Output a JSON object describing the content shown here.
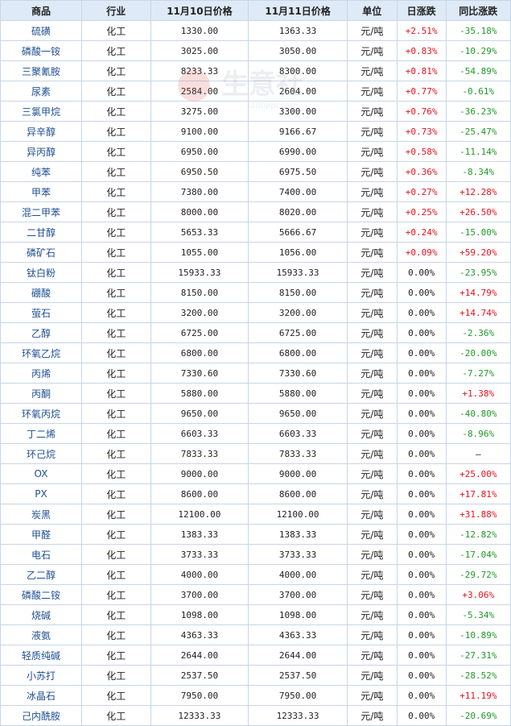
{
  "headers": [
    "商品",
    "行业",
    "11月10日价格",
    "11月11日价格",
    "单位",
    "日涨跌",
    "同比涨跌"
  ],
  "watermark": {
    "text": "生意社",
    "sub": "100ppi.com"
  },
  "rows": [
    {
      "name": "硫磺",
      "industry": "化工",
      "p1": "1330.00",
      "p2": "1363.33",
      "unit": "元/吨",
      "day": "+2.51%",
      "yoy": "-35.18%"
    },
    {
      "name": "磷酸一铵",
      "industry": "化工",
      "p1": "3025.00",
      "p2": "3050.00",
      "unit": "元/吨",
      "day": "+0.83%",
      "yoy": "-10.29%"
    },
    {
      "name": "三聚氰胺",
      "industry": "化工",
      "p1": "8233.33",
      "p2": "8300.00",
      "unit": "元/吨",
      "day": "+0.81%",
      "yoy": "-54.89%"
    },
    {
      "name": "尿素",
      "industry": "化工",
      "p1": "2584.00",
      "p2": "2604.00",
      "unit": "元/吨",
      "day": "+0.77%",
      "yoy": "-0.61%"
    },
    {
      "name": "三氯甲烷",
      "industry": "化工",
      "p1": "3275.00",
      "p2": "3300.00",
      "unit": "元/吨",
      "day": "+0.76%",
      "yoy": "-36.23%"
    },
    {
      "name": "异辛醇",
      "industry": "化工",
      "p1": "9100.00",
      "p2": "9166.67",
      "unit": "元/吨",
      "day": "+0.73%",
      "yoy": "-25.47%"
    },
    {
      "name": "异丙醇",
      "industry": "化工",
      "p1": "6950.00",
      "p2": "6990.00",
      "unit": "元/吨",
      "day": "+0.58%",
      "yoy": "-11.14%"
    },
    {
      "name": "纯苯",
      "industry": "化工",
      "p1": "6950.50",
      "p2": "6975.50",
      "unit": "元/吨",
      "day": "+0.36%",
      "yoy": "-8.34%"
    },
    {
      "name": "甲苯",
      "industry": "化工",
      "p1": "7380.00",
      "p2": "7400.00",
      "unit": "元/吨",
      "day": "+0.27%",
      "yoy": "+12.28%"
    },
    {
      "name": "混二甲苯",
      "industry": "化工",
      "p1": "8000.00",
      "p2": "8020.00",
      "unit": "元/吨",
      "day": "+0.25%",
      "yoy": "+26.50%"
    },
    {
      "name": "二甘醇",
      "industry": "化工",
      "p1": "5653.33",
      "p2": "5666.67",
      "unit": "元/吨",
      "day": "+0.24%",
      "yoy": "-15.00%"
    },
    {
      "name": "磷矿石",
      "industry": "化工",
      "p1": "1055.00",
      "p2": "1056.00",
      "unit": "元/吨",
      "day": "+0.09%",
      "yoy": "+59.20%"
    },
    {
      "name": "钛白粉",
      "industry": "化工",
      "p1": "15933.33",
      "p2": "15933.33",
      "unit": "元/吨",
      "day": "0.00%",
      "yoy": "-23.95%"
    },
    {
      "name": "硼酸",
      "industry": "化工",
      "p1": "8150.00",
      "p2": "8150.00",
      "unit": "元/吨",
      "day": "0.00%",
      "yoy": "+14.79%"
    },
    {
      "name": "萤石",
      "industry": "化工",
      "p1": "3200.00",
      "p2": "3200.00",
      "unit": "元/吨",
      "day": "0.00%",
      "yoy": "+14.74%"
    },
    {
      "name": "乙醇",
      "industry": "化工",
      "p1": "6725.00",
      "p2": "6725.00",
      "unit": "元/吨",
      "day": "0.00%",
      "yoy": "-2.36%"
    },
    {
      "name": "环氧乙烷",
      "industry": "化工",
      "p1": "6800.00",
      "p2": "6800.00",
      "unit": "元/吨",
      "day": "0.00%",
      "yoy": "-20.00%"
    },
    {
      "name": "丙烯",
      "industry": "化工",
      "p1": "7330.60",
      "p2": "7330.60",
      "unit": "元/吨",
      "day": "0.00%",
      "yoy": "-7.27%"
    },
    {
      "name": "丙酮",
      "industry": "化工",
      "p1": "5880.00",
      "p2": "5880.00",
      "unit": "元/吨",
      "day": "0.00%",
      "yoy": "+1.38%"
    },
    {
      "name": "环氧丙烷",
      "industry": "化工",
      "p1": "9650.00",
      "p2": "9650.00",
      "unit": "元/吨",
      "day": "0.00%",
      "yoy": "-40.80%"
    },
    {
      "name": "丁二烯",
      "industry": "化工",
      "p1": "6603.33",
      "p2": "6603.33",
      "unit": "元/吨",
      "day": "0.00%",
      "yoy": "-8.96%"
    },
    {
      "name": "环己烷",
      "industry": "化工",
      "p1": "7833.33",
      "p2": "7833.33",
      "unit": "元/吨",
      "day": "0.00%",
      "yoy": "—"
    },
    {
      "name": "OX",
      "industry": "化工",
      "p1": "9000.00",
      "p2": "9000.00",
      "unit": "元/吨",
      "day": "0.00%",
      "yoy": "+25.00%"
    },
    {
      "name": "PX",
      "industry": "化工",
      "p1": "8600.00",
      "p2": "8600.00",
      "unit": "元/吨",
      "day": "0.00%",
      "yoy": "+17.81%"
    },
    {
      "name": "炭黑",
      "industry": "化工",
      "p1": "12100.00",
      "p2": "12100.00",
      "unit": "元/吨",
      "day": "0.00%",
      "yoy": "+31.88%"
    },
    {
      "name": "甲醛",
      "industry": "化工",
      "p1": "1383.33",
      "p2": "1383.33",
      "unit": "元/吨",
      "day": "0.00%",
      "yoy": "-12.82%"
    },
    {
      "name": "电石",
      "industry": "化工",
      "p1": "3733.33",
      "p2": "3733.33",
      "unit": "元/吨",
      "day": "0.00%",
      "yoy": "-17.04%"
    },
    {
      "name": "乙二醇",
      "industry": "化工",
      "p1": "4000.00",
      "p2": "4000.00",
      "unit": "元/吨",
      "day": "0.00%",
      "yoy": "-29.72%"
    },
    {
      "name": "磷酸二铵",
      "industry": "化工",
      "p1": "3700.00",
      "p2": "3700.00",
      "unit": "元/吨",
      "day": "0.00%",
      "yoy": "+3.06%"
    },
    {
      "name": "烧碱",
      "industry": "化工",
      "p1": "1098.00",
      "p2": "1098.00",
      "unit": "元/吨",
      "day": "0.00%",
      "yoy": "-5.34%"
    },
    {
      "name": "液氨",
      "industry": "化工",
      "p1": "4363.33",
      "p2": "4363.33",
      "unit": "元/吨",
      "day": "0.00%",
      "yoy": "-10.89%"
    },
    {
      "name": "轻质纯碱",
      "industry": "化工",
      "p1": "2644.00",
      "p2": "2644.00",
      "unit": "元/吨",
      "day": "0.00%",
      "yoy": "-27.31%"
    },
    {
      "name": "小苏打",
      "industry": "化工",
      "p1": "2537.50",
      "p2": "2537.50",
      "unit": "元/吨",
      "day": "0.00%",
      "yoy": "-28.52%"
    },
    {
      "name": "冰晶石",
      "industry": "化工",
      "p1": "7950.00",
      "p2": "7950.00",
      "unit": "元/吨",
      "day": "0.00%",
      "yoy": "+11.19%"
    },
    {
      "name": "己内酰胺",
      "industry": "化工",
      "p1": "12333.33",
      "p2": "12333.33",
      "unit": "元/吨",
      "day": "0.00%",
      "yoy": "-20.69%"
    }
  ]
}
